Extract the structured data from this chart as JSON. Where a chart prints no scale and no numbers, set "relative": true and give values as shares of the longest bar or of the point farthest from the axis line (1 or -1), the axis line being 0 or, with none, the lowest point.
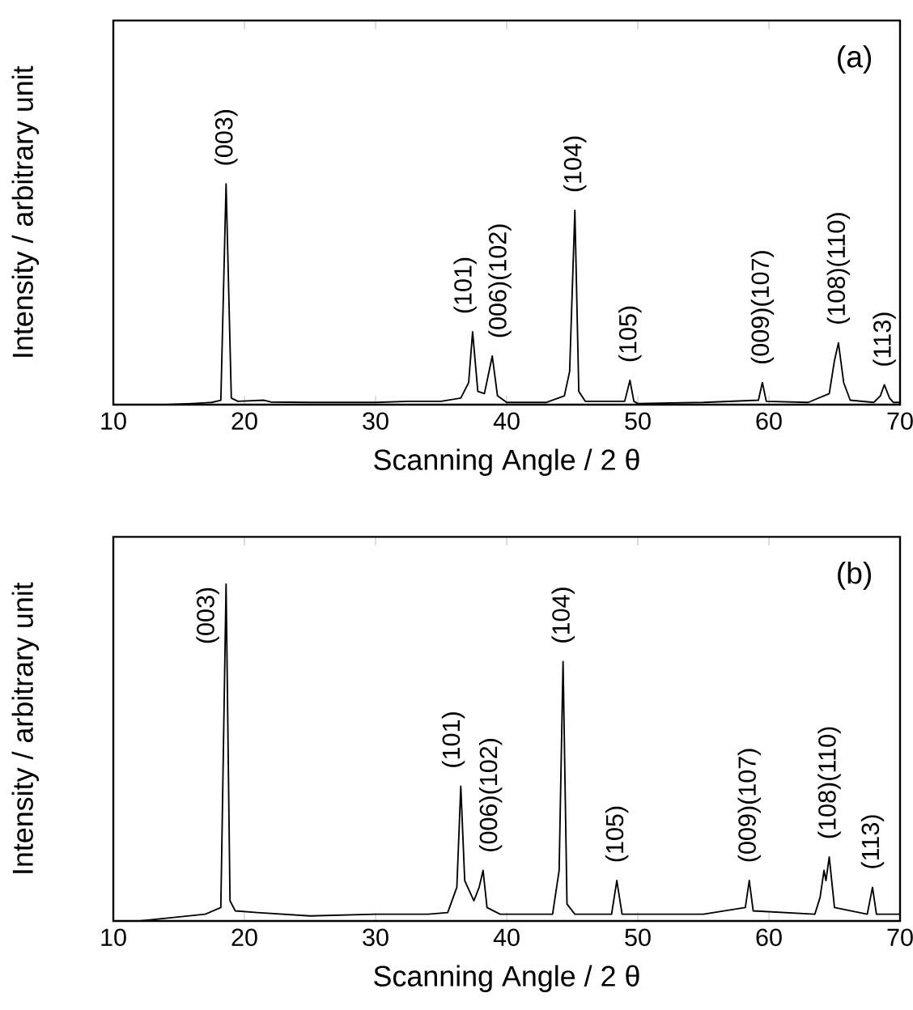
{
  "chart_data": [
    {
      "type": "line",
      "xlabel": "Scanning  Angle /  2 θ",
      "ylabel": "Intensity / arbitrary unit",
      "relative": true,
      "xlim": [
        10,
        70
      ],
      "xticks": [
        10,
        20,
        30,
        40,
        50,
        60,
        70
      ],
      "series": [
        {
          "color": "#000000",
          "x": [
            14,
            16,
            17.5,
            18.2,
            18.6,
            19.0,
            19.5,
            21.5,
            22,
            25,
            30,
            32.5,
            35,
            36.5,
            37.1,
            37.4,
            37.8,
            38.3,
            38.9,
            39.3,
            40,
            43,
            44.4,
            44.8,
            45.2,
            45.5,
            46,
            49,
            49.4,
            49.7,
            50,
            55,
            59.2,
            59.5,
            59.8,
            63,
            64.6,
            65.0,
            65.3,
            65.7,
            66.2,
            68,
            68.5,
            68.8,
            69.2,
            69.5,
            70
          ],
          "values": [
            0,
            0.005,
            0.01,
            0.02,
            1.0,
            0.03,
            0.015,
            0.02,
            0.012,
            0.01,
            0.01,
            0.015,
            0.015,
            0.03,
            0.1,
            0.33,
            0.06,
            0.05,
            0.22,
            0.04,
            0.01,
            0.01,
            0.04,
            0.15,
            0.88,
            0.06,
            0.015,
            0.015,
            0.11,
            0.015,
            0.005,
            0.01,
            0.02,
            0.1,
            0.015,
            0.01,
            0.05,
            0.2,
            0.28,
            0.1,
            0.02,
            0.01,
            0.04,
            0.09,
            0.03,
            0.01,
            0.01
          ]
        }
      ],
      "annotations": [
        "(a)",
        {
          "text": "(003)",
          "x": 18.6,
          "y": 1.0
        },
        {
          "text": "(101)",
          "x": 37.4,
          "y": 0.33
        },
        {
          "text": "(006)(102)",
          "x": 38.9,
          "y": 0.22
        },
        {
          "text": "(104)",
          "x": 45.2,
          "y": 0.88
        },
        {
          "text": "(105)",
          "x": 49.4,
          "y": 0.11
        },
        {
          "text": "(009)(107)",
          "x": 59.5,
          "y": 0.1
        },
        {
          "text": "(108)(110)",
          "x": 65.3,
          "y": 0.28
        },
        {
          "text": "(113)",
          "x": 68.8,
          "y": 0.09
        }
      ]
    },
    {
      "type": "line",
      "xlabel": "Scanning  Angle /  2 θ",
      "ylabel": "Intensity / arbitrary unit",
      "relative": true,
      "xlim": [
        10,
        70
      ],
      "xticks": [
        10,
        20,
        30,
        40,
        50,
        60,
        70
      ],
      "series": [
        {
          "color": "#000000",
          "x": [
            12,
            14,
            17,
            18.2,
            18.6,
            18.9,
            19.3,
            21,
            25,
            30,
            34,
            35.5,
            36.2,
            36.5,
            36.8,
            37.5,
            37.9,
            38.2,
            38.5,
            39.5,
            43.5,
            44.0,
            44.3,
            44.6,
            45.2,
            48.0,
            48.4,
            48.8,
            55,
            58.2,
            58.5,
            58.8,
            63.5,
            63.9,
            64.2,
            64.35,
            64.6,
            65.0,
            67.5,
            67.9,
            68.2,
            70
          ],
          "values": [
            0,
            0.008,
            0.02,
            0.04,
            1.0,
            0.06,
            0.03,
            0.025,
            0.015,
            0.02,
            0.02,
            0.025,
            0.1,
            0.4,
            0.12,
            0.06,
            0.1,
            0.15,
            0.04,
            0.02,
            0.02,
            0.15,
            0.77,
            0.05,
            0.02,
            0.02,
            0.12,
            0.02,
            0.02,
            0.04,
            0.12,
            0.03,
            0.02,
            0.07,
            0.15,
            0.12,
            0.19,
            0.04,
            0.02,
            0.1,
            0.02,
            0.02
          ]
        }
      ],
      "annotations": [
        "(b)",
        {
          "text": "(003)",
          "x": 18.6,
          "y": 1.0
        },
        {
          "text": "(101)",
          "x": 36.5,
          "y": 0.4
        },
        {
          "text": "(006)(102)",
          "x": 38.2,
          "y": 0.15
        },
        {
          "text": "(104)",
          "x": 44.3,
          "y": 0.77
        },
        {
          "text": "(105)",
          "x": 48.4,
          "y": 0.12
        },
        {
          "text": "(009)(107)",
          "x": 58.5,
          "y": 0.12
        },
        {
          "text": "(108)(110)",
          "x": 64.6,
          "y": 0.19
        },
        {
          "text": "(113)",
          "x": 67.9,
          "y": 0.1
        }
      ]
    }
  ]
}
